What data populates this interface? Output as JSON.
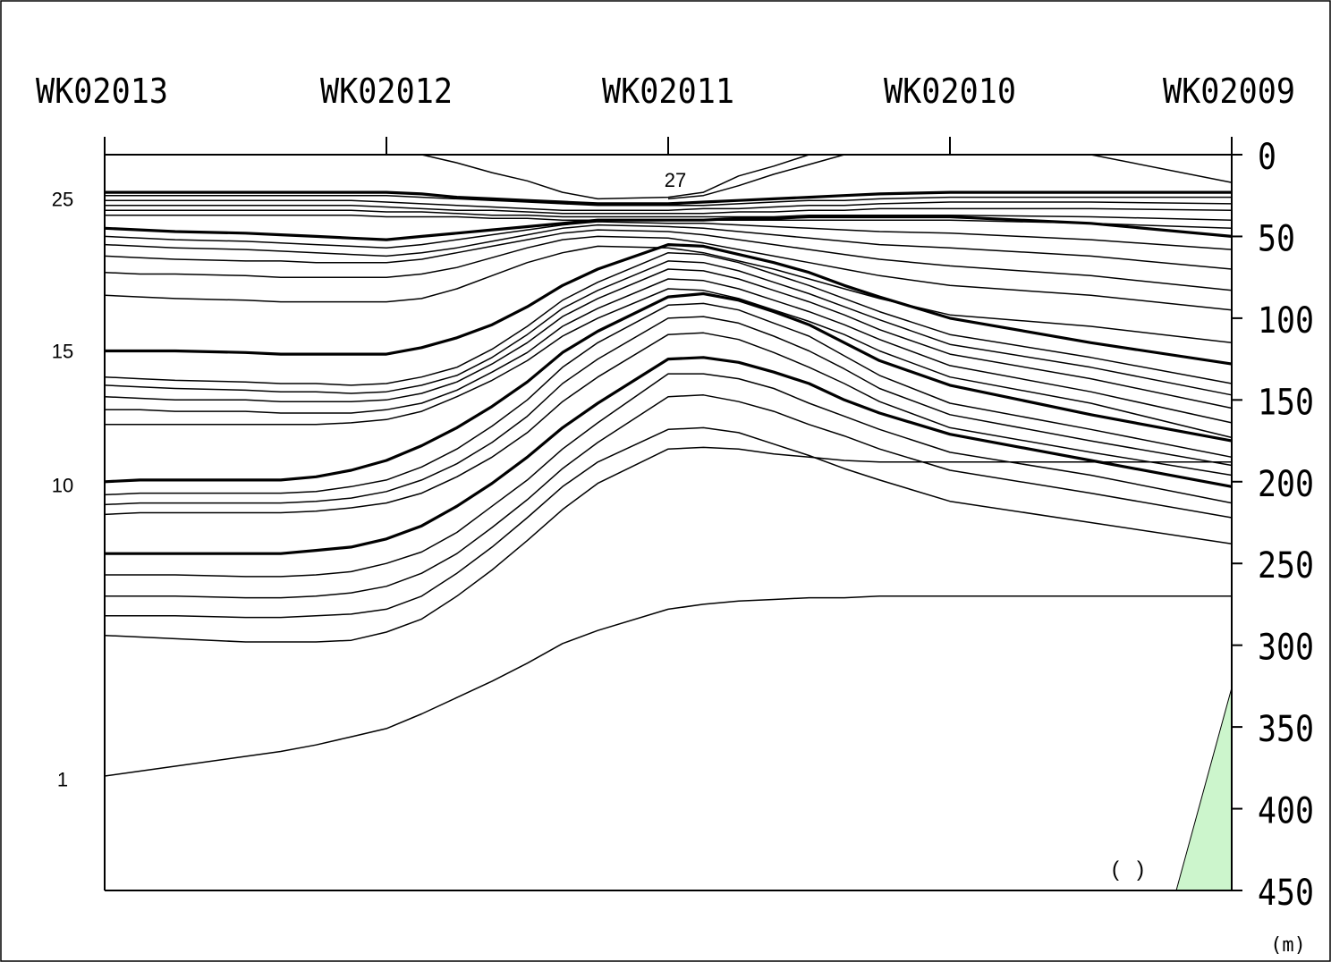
{
  "chart_data": {
    "type": "line",
    "title": "",
    "xlabel": "",
    "ylabel": "",
    "y_unit": "(m)",
    "y_axis_side": "right",
    "y_inverted": true,
    "ylim": [
      0,
      450
    ],
    "yticks": [
      0,
      50,
      100,
      150,
      200,
      250,
      300,
      350,
      400,
      450
    ],
    "stations": [
      "WK02013",
      "WK02012",
      "WK02011",
      "WK02010",
      "WK02009"
    ],
    "contour_labels": [
      {
        "text": "25",
        "depth": 27
      },
      {
        "text": "15",
        "depth": 120
      },
      {
        "text": "10",
        "depth": 202
      },
      {
        "text": "1",
        "depth": 382
      },
      {
        "text": "27",
        "depth": 18
      }
    ],
    "annotation": "(   )",
    "shaded_region": {
      "color": "#ccf5cc"
    },
    "x": [
      0,
      0.125,
      0.25,
      0.5,
      0.625,
      0.75,
      0.875,
      1,
      1.125,
      1.25,
      1.375,
      1.5,
      1.625,
      1.75,
      2,
      2.125,
      2.25,
      2.375,
      2.5,
      2.625,
      2.75,
      3,
      3.5,
      4
    ],
    "series": [
      {
        "bold": false,
        "values": [
          null,
          null,
          null,
          null,
          null,
          null,
          null,
          0,
          0,
          5,
          11,
          16,
          23,
          27,
          26,
          23,
          13,
          7,
          0,
          0,
          null,
          null,
          null,
          null
        ]
      },
      {
        "bold": false,
        "values": [
          null,
          null,
          null,
          null,
          null,
          null,
          null,
          null,
          null,
          null,
          null,
          null,
          null,
          null,
          27,
          25,
          19,
          12,
          6,
          0,
          null,
          null,
          null,
          null
        ]
      },
      {
        "bold": false,
        "values": [
          null,
          null,
          null,
          null,
          null,
          null,
          null,
          null,
          null,
          null,
          null,
          null,
          null,
          null,
          null,
          null,
          null,
          null,
          null,
          null,
          null,
          0,
          0,
          17
        ]
      },
      {
        "bold": true,
        "values": [
          23,
          23,
          23,
          23,
          23,
          23,
          23,
          23,
          24,
          26,
          27,
          28,
          29,
          30,
          30,
          29,
          28,
          27,
          26,
          25,
          24,
          23,
          23,
          23
        ]
      },
      {
        "bold": false,
        "values": [
          25,
          25,
          25,
          25,
          25,
          25,
          25,
          25,
          26,
          27,
          28,
          29,
          30,
          31,
          31,
          31,
          30,
          29,
          28,
          28,
          27,
          26,
          26,
          26
        ]
      },
      {
        "bold": false,
        "values": [
          28,
          28,
          28,
          28,
          28,
          28,
          28,
          29,
          30,
          31,
          32,
          33,
          34,
          34,
          34,
          33,
          33,
          32,
          31,
          31,
          30,
          29,
          29,
          30
        ]
      },
      {
        "bold": false,
        "values": [
          31,
          31,
          31,
          31,
          31,
          31,
          31,
          32,
          33,
          34,
          34,
          35,
          36,
          36,
          36,
          36,
          35,
          35,
          34,
          34,
          33,
          33,
          33,
          34
        ]
      },
      {
        "bold": false,
        "values": [
          34,
          34,
          34,
          34,
          34,
          34,
          34,
          35,
          35,
          36,
          37,
          37,
          38,
          38,
          38,
          38,
          38,
          38,
          37,
          37,
          37,
          37,
          38,
          40
        ]
      },
      {
        "bold": false,
        "values": [
          37,
          37,
          37,
          37,
          37,
          37,
          37,
          38,
          38,
          38,
          39,
          39,
          40,
          40,
          40,
          40,
          40,
          40,
          40,
          40,
          40,
          40,
          42,
          45
        ]
      },
      {
        "bold": true,
        "values": [
          45,
          46,
          47,
          48,
          49,
          50,
          51,
          52,
          50,
          48,
          46,
          44,
          42,
          40,
          40,
          40,
          39,
          39,
          38,
          38,
          38,
          38,
          42,
          50
        ]
      },
      {
        "bold": false,
        "values": [
          50,
          51,
          52,
          53,
          54,
          55,
          56,
          57,
          55,
          52,
          49,
          46,
          43,
          41,
          42,
          42,
          43,
          44,
          45,
          46,
          47,
          48,
          52,
          58
        ]
      },
      {
        "bold": false,
        "values": [
          55,
          56,
          57,
          58,
          59,
          60,
          61,
          62,
          60,
          57,
          53,
          49,
          45,
          43,
          44,
          45,
          47,
          49,
          51,
          53,
          55,
          57,
          62,
          70
        ]
      },
      {
        "bold": false,
        "values": [
          62,
          63,
          64,
          65,
          65,
          66,
          66,
          66,
          64,
          60,
          56,
          52,
          48,
          46,
          47,
          49,
          52,
          55,
          58,
          61,
          64,
          68,
          74,
          83
        ]
      },
      {
        "bold": false,
        "values": [
          72,
          73,
          73,
          74,
          75,
          75,
          75,
          75,
          73,
          69,
          63,
          57,
          52,
          50,
          51,
          54,
          58,
          62,
          66,
          70,
          74,
          80,
          86,
          95
        ]
      },
      {
        "bold": false,
        "values": [
          86,
          87,
          88,
          89,
          90,
          90,
          90,
          90,
          88,
          82,
          74,
          66,
          60,
          56,
          57,
          60,
          65,
          70,
          76,
          82,
          88,
          98,
          105,
          115
        ]
      },
      {
        "bold": true,
        "values": [
          120,
          120,
          120,
          121,
          122,
          122,
          122,
          122,
          118,
          112,
          104,
          93,
          80,
          70,
          55,
          56,
          61,
          66,
          72,
          80,
          87,
          100,
          115,
          128
        ]
      },
      {
        "bold": false,
        "values": [
          136,
          137,
          138,
          139,
          140,
          140,
          141,
          140,
          136,
          130,
          119,
          105,
          89,
          78,
          60,
          61,
          66,
          73,
          80,
          88,
          96,
          110,
          124,
          140
        ]
      },
      {
        "bold": false,
        "values": [
          141,
          142,
          143,
          144,
          145,
          145,
          146,
          145,
          141,
          135,
          124,
          110,
          94,
          83,
          65,
          66,
          71,
          78,
          85,
          93,
          101,
          116,
          130,
          147
        ]
      },
      {
        "bold": false,
        "values": [
          148,
          149,
          150,
          150,
          151,
          151,
          151,
          150,
          146,
          139,
          128,
          115,
          99,
          88,
          70,
          71,
          76,
          83,
          90,
          98,
          107,
          122,
          137,
          155
        ]
      },
      {
        "bold": false,
        "values": [
          156,
          156,
          157,
          157,
          158,
          158,
          158,
          156,
          152,
          144,
          133,
          121,
          105,
          94,
          76,
          77,
          82,
          89,
          96,
          104,
          113,
          129,
          145,
          164
        ]
      },
      {
        "bold": false,
        "values": [
          165,
          165,
          165,
          165,
          165,
          165,
          164,
          162,
          157,
          148,
          138,
          126,
          111,
          100,
          82,
          83,
          88,
          95,
          102,
          110,
          120,
          136,
          152,
          173
        ]
      },
      {
        "bold": true,
        "values": [
          200,
          199,
          199,
          199,
          199,
          197,
          193,
          187,
          178,
          167,
          154,
          139,
          121,
          108,
          87,
          85,
          89,
          96,
          104,
          115,
          126,
          141,
          159,
          175
        ]
      },
      {
        "bold": false,
        "values": [
          208,
          207,
          207,
          207,
          207,
          206,
          203,
          199,
          191,
          180,
          166,
          150,
          130,
          115,
          92,
          91,
          95,
          103,
          111,
          123,
          135,
          152,
          168,
          185
        ]
      },
      {
        "bold": false,
        "values": [
          214,
          213,
          213,
          213,
          213,
          212,
          210,
          206,
          199,
          189,
          176,
          160,
          140,
          125,
          100,
          99,
          103,
          111,
          120,
          131,
          143,
          159,
          175,
          190
        ]
      },
      {
        "bold": false,
        "values": [
          220,
          219,
          219,
          219,
          219,
          218,
          216,
          213,
          207,
          197,
          185,
          170,
          151,
          136,
          110,
          109,
          113,
          121,
          130,
          140,
          151,
          167,
          182,
          196
        ]
      },
      {
        "bold": true,
        "values": [
          244,
          244,
          244,
          244,
          244,
          242,
          240,
          235,
          227,
          215,
          201,
          185,
          167,
          152,
          125,
          124,
          127,
          133,
          140,
          150,
          158,
          171,
          187,
          203
        ]
      },
      {
        "bold": false,
        "values": [
          257,
          257,
          257,
          258,
          258,
          257,
          255,
          250,
          243,
          231,
          215,
          199,
          180,
          164,
          134,
          134,
          137,
          143,
          152,
          160,
          168,
          182,
          196,
          213
        ]
      },
      {
        "bold": false,
        "values": [
          270,
          270,
          270,
          271,
          271,
          270,
          268,
          264,
          256,
          244,
          228,
          211,
          192,
          176,
          148,
          147,
          151,
          157,
          165,
          172,
          180,
          193,
          207,
          222
        ]
      },
      {
        "bold": false,
        "values": [
          282,
          282,
          282,
          283,
          283,
          282,
          281,
          278,
          270,
          256,
          240,
          222,
          203,
          188,
          168,
          167,
          170,
          177,
          184,
          192,
          199,
          212,
          225,
          238
        ]
      },
      {
        "bold": false,
        "values": [
          294,
          295,
          296,
          298,
          298,
          298,
          297,
          292,
          284,
          270,
          254,
          236,
          217,
          201,
          180,
          179,
          180,
          183,
          185,
          187,
          188,
          188,
          188,
          188
        ]
      },
      {
        "bold": false,
        "values": [
          380,
          377,
          374,
          368,
          365,
          361,
          356,
          351,
          342,
          332,
          322,
          311,
          299,
          291,
          278,
          275,
          273,
          272,
          271,
          271,
          270,
          270,
          270,
          270
        ]
      }
    ]
  }
}
